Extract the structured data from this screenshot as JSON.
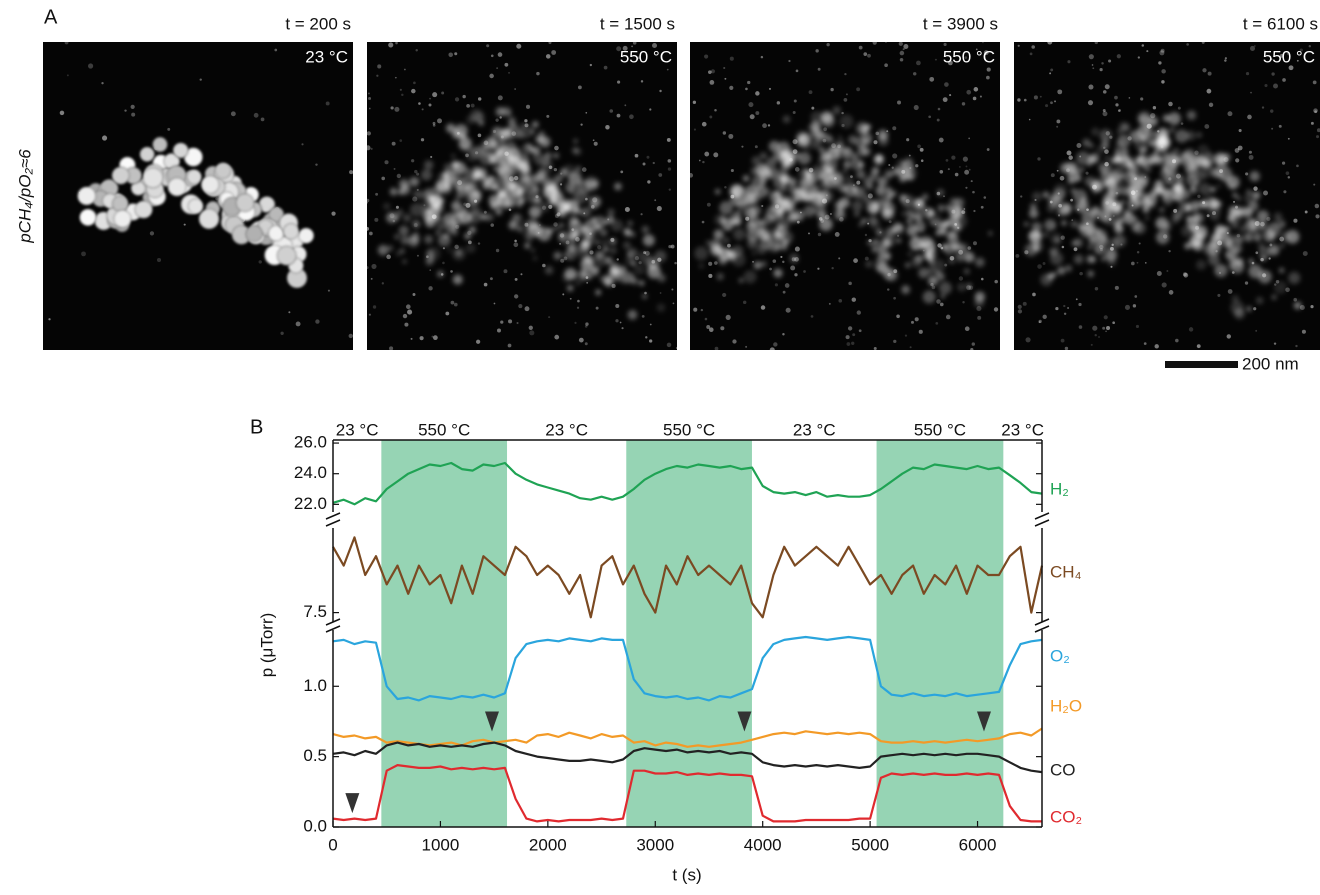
{
  "panel_a": {
    "label": "A",
    "side_label": "pCH₄/pO₂≈6",
    "images": [
      {
        "time": "t = 200 s",
        "temperature": "23 °C"
      },
      {
        "time": "t = 1500 s",
        "temperature": "550 °C"
      },
      {
        "time": "t = 3900 s",
        "temperature": "550 °C"
      },
      {
        "time": "t = 6100 s",
        "temperature": "550 °C"
      }
    ],
    "scale_bar": "200 nm"
  },
  "chart_data": {
    "type": "line",
    "panel_label": "B",
    "xlabel": "t (s)",
    "ylabel": "p (μTorr)",
    "xlim": [
      0,
      6600
    ],
    "xticks": [
      0,
      1000,
      2000,
      3000,
      4000,
      5000,
      6000
    ],
    "shade_color": "#96d4b4",
    "regions": [
      {
        "start": 0,
        "end": 450,
        "label": "23 °C",
        "shaded": false
      },
      {
        "start": 450,
        "end": 1620,
        "label": "550 °C",
        "shaded": true
      },
      {
        "start": 1620,
        "end": 2730,
        "label": "23 °C",
        "shaded": false
      },
      {
        "start": 2730,
        "end": 3900,
        "label": "550 °C",
        "shaded": true
      },
      {
        "start": 3900,
        "end": 5060,
        "label": "23 °C",
        "shaded": false
      },
      {
        "start": 5060,
        "end": 6240,
        "label": "550 °C",
        "shaded": true
      },
      {
        "start": 6240,
        "end": 6600,
        "label": "23 °C",
        "shaded": false
      }
    ],
    "x": [
      0,
      100,
      200,
      300,
      400,
      500,
      600,
      700,
      800,
      900,
      1000,
      1100,
      1200,
      1300,
      1400,
      1500,
      1600,
      1700,
      1800,
      1900,
      2000,
      2100,
      2200,
      2300,
      2400,
      2500,
      2600,
      2700,
      2800,
      2900,
      3000,
      3100,
      3200,
      3300,
      3400,
      3500,
      3600,
      3700,
      3800,
      3900,
      4000,
      4100,
      4200,
      4300,
      4400,
      4500,
      4600,
      4700,
      4800,
      4900,
      5000,
      5100,
      5200,
      5300,
      5400,
      5500,
      5600,
      5700,
      5800,
      5900,
      6000,
      6100,
      6200,
      6300,
      6400,
      6500,
      6600
    ],
    "panels": [
      {
        "ylim": [
          21.5,
          26.2
        ],
        "yticks": [
          {
            "value": 22,
            "label": "22.0"
          },
          {
            "value": 24,
            "label": "24.0"
          },
          {
            "value": 26,
            "label": "26.0"
          }
        ],
        "series": [
          {
            "name": "H₂",
            "color": "#1fa354",
            "values": [
              22.1,
              22.3,
              22.0,
              22.4,
              22.2,
              23.0,
              23.5,
              24.0,
              24.3,
              24.6,
              24.5,
              24.7,
              24.3,
              24.2,
              24.6,
              24.5,
              24.7,
              24.0,
              23.6,
              23.3,
              23.1,
              22.9,
              22.7,
              22.4,
              22.3,
              22.5,
              22.3,
              22.5,
              23.0,
              23.6,
              24.0,
              24.3,
              24.5,
              24.4,
              24.6,
              24.5,
              24.4,
              24.5,
              24.3,
              24.4,
              23.2,
              22.8,
              22.7,
              22.8,
              22.6,
              22.8,
              22.5,
              22.6,
              22.5,
              22.5,
              22.6,
              23.0,
              23.5,
              24.0,
              24.4,
              24.3,
              24.6,
              24.5,
              24.4,
              24.3,
              24.5,
              24.3,
              24.4,
              23.9,
              23.4,
              22.8,
              22.7
            ]
          }
        ]
      },
      {
        "ylim": [
          7.4,
          8.4
        ],
        "yticks": [
          7.5
        ],
        "series": [
          {
            "name": "CH₄",
            "color": "#7b4a22",
            "values": [
              8.2,
              8.0,
              8.3,
              7.9,
              8.1,
              7.8,
              8.0,
              7.7,
              8.0,
              7.8,
              7.9,
              7.6,
              8.0,
              7.7,
              8.1,
              8.0,
              7.9,
              8.2,
              8.1,
              7.9,
              8.0,
              7.9,
              7.7,
              7.9,
              7.45,
              8.0,
              8.1,
              7.8,
              8.0,
              7.7,
              7.5,
              8.0,
              7.8,
              8.1,
              7.9,
              8.0,
              7.9,
              7.8,
              8.0,
              7.6,
              7.45,
              7.9,
              8.2,
              8.0,
              8.1,
              8.2,
              8.1,
              8.0,
              8.2,
              8.0,
              7.8,
              7.9,
              7.7,
              7.9,
              8.0,
              7.7,
              7.9,
              7.8,
              8.0,
              7.7,
              8.0,
              7.9,
              7.9,
              8.1,
              8.2,
              7.5,
              8.0
            ]
          }
        ]
      },
      {
        "ylim": [
          0,
          1.4
        ],
        "yticks": [
          {
            "value": 0,
            "label": "0.0"
          },
          {
            "value": 0.5,
            "label": "0.5"
          },
          {
            "value": 1,
            "label": "1.0"
          }
        ],
        "series": [
          {
            "name": "O₂",
            "color": "#2aa5dd",
            "values": [
              1.32,
              1.33,
              1.3,
              1.32,
              1.31,
              1.0,
              0.91,
              0.92,
              0.9,
              0.93,
              0.92,
              0.91,
              0.93,
              0.92,
              0.94,
              0.92,
              0.95,
              1.2,
              1.3,
              1.32,
              1.33,
              1.32,
              1.34,
              1.33,
              1.32,
              1.34,
              1.33,
              1.33,
              1.05,
              0.95,
              0.93,
              0.92,
              0.93,
              0.91,
              0.92,
              0.9,
              0.93,
              0.92,
              0.95,
              0.98,
              1.2,
              1.3,
              1.33,
              1.34,
              1.35,
              1.34,
              1.33,
              1.34,
              1.35,
              1.34,
              1.33,
              1.0,
              0.94,
              0.93,
              0.95,
              0.93,
              0.94,
              0.93,
              0.95,
              0.93,
              0.94,
              0.95,
              0.96,
              1.15,
              1.3,
              1.32,
              1.33
            ]
          },
          {
            "name": "H₂O",
            "color": "#f39a27",
            "values": [
              0.66,
              0.64,
              0.65,
              0.63,
              0.64,
              0.6,
              0.61,
              0.6,
              0.59,
              0.58,
              0.59,
              0.6,
              0.58,
              0.61,
              0.62,
              0.6,
              0.61,
              0.62,
              0.6,
              0.65,
              0.66,
              0.64,
              0.67,
              0.65,
              0.63,
              0.66,
              0.64,
              0.65,
              0.6,
              0.61,
              0.58,
              0.6,
              0.59,
              0.57,
              0.58,
              0.57,
              0.58,
              0.59,
              0.6,
              0.62,
              0.64,
              0.66,
              0.67,
              0.66,
              0.68,
              0.67,
              0.66,
              0.67,
              0.66,
              0.67,
              0.66,
              0.61,
              0.6,
              0.6,
              0.61,
              0.6,
              0.61,
              0.6,
              0.61,
              0.62,
              0.61,
              0.62,
              0.63,
              0.66,
              0.67,
              0.65,
              0.7
            ]
          },
          {
            "name": "CO",
            "color": "#222222",
            "values": [
              0.52,
              0.53,
              0.51,
              0.54,
              0.52,
              0.58,
              0.6,
              0.58,
              0.59,
              0.57,
              0.58,
              0.57,
              0.58,
              0.57,
              0.59,
              0.6,
              0.58,
              0.54,
              0.52,
              0.5,
              0.49,
              0.48,
              0.47,
              0.47,
              0.48,
              0.47,
              0.46,
              0.48,
              0.54,
              0.56,
              0.55,
              0.54,
              0.55,
              0.53,
              0.54,
              0.53,
              0.54,
              0.52,
              0.53,
              0.52,
              0.46,
              0.44,
              0.43,
              0.44,
              0.43,
              0.44,
              0.43,
              0.44,
              0.43,
              0.42,
              0.43,
              0.5,
              0.51,
              0.52,
              0.51,
              0.52,
              0.51,
              0.52,
              0.51,
              0.52,
              0.52,
              0.51,
              0.5,
              0.46,
              0.42,
              0.4,
              0.39
            ]
          },
          {
            "name": "CO₂",
            "color": "#e02a2f",
            "values": [
              0.06,
              0.05,
              0.06,
              0.05,
              0.06,
              0.4,
              0.44,
              0.43,
              0.42,
              0.42,
              0.43,
              0.41,
              0.42,
              0.41,
              0.42,
              0.41,
              0.42,
              0.2,
              0.06,
              0.04,
              0.05,
              0.04,
              0.05,
              0.05,
              0.05,
              0.06,
              0.05,
              0.06,
              0.4,
              0.4,
              0.38,
              0.38,
              0.39,
              0.37,
              0.38,
              0.37,
              0.38,
              0.37,
              0.37,
              0.36,
              0.08,
              0.04,
              0.04,
              0.04,
              0.05,
              0.05,
              0.05,
              0.05,
              0.05,
              0.06,
              0.06,
              0.35,
              0.38,
              0.37,
              0.38,
              0.37,
              0.38,
              0.37,
              0.37,
              0.38,
              0.37,
              0.38,
              0.37,
              0.15,
              0.05,
              0.04,
              0.04
            ]
          }
        ],
        "markers": {
          "x": [
            180,
            1480,
            3830,
            6060
          ],
          "y": [
            0.17,
            0.75,
            0.75,
            0.75
          ]
        }
      }
    ]
  }
}
